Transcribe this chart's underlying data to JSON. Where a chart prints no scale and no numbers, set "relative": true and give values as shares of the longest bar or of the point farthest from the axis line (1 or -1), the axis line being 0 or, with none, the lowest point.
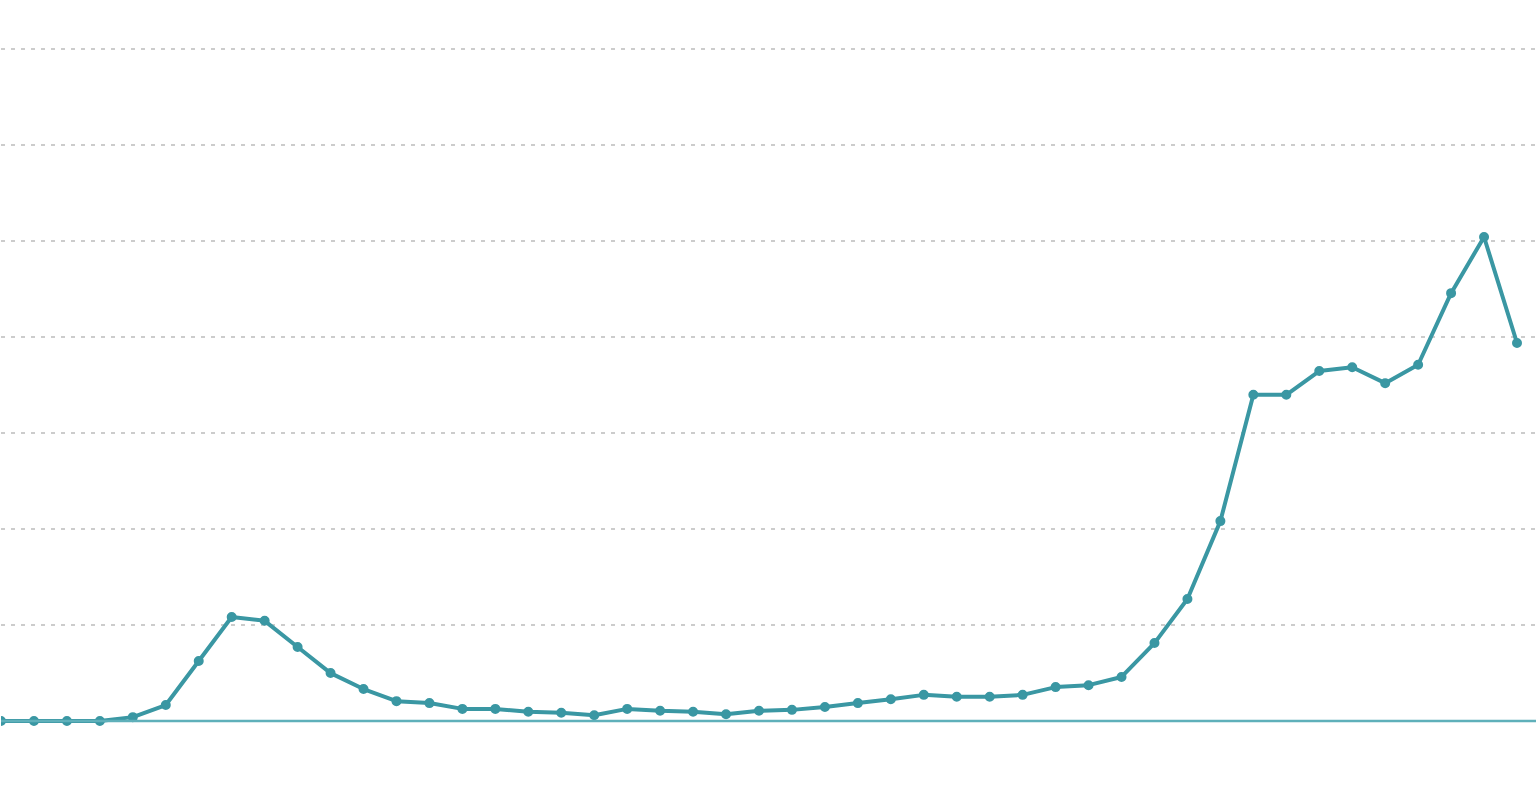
{
  "chart_data": {
    "type": "line",
    "relative": true,
    "grid": "y",
    "marker": "circle",
    "line_style": "solid",
    "categories": [
      null,
      null,
      null,
      null,
      null,
      null,
      null,
      null,
      null,
      null,
      null,
      null,
      null,
      null,
      null,
      null,
      null,
      null,
      null,
      null,
      null,
      null,
      null,
      null,
      null,
      null,
      null,
      null,
      null,
      null,
      null,
      null,
      null,
      null,
      null,
      null,
      null,
      null,
      null,
      null,
      null,
      null,
      null,
      null,
      null,
      null,
      null
    ],
    "series": [
      {
        "color": "#3a97a3",
        "values": [
          0,
          0,
          0,
          0,
          0.008,
          0.033,
          0.124,
          0.215,
          0.207,
          0.153,
          0.099,
          0.066,
          0.041,
          0.037,
          0.025,
          0.025,
          0.019,
          0.017,
          0.012,
          0.025,
          0.021,
          0.019,
          0.014,
          0.021,
          0.023,
          0.029,
          0.037,
          0.045,
          0.054,
          0.05,
          0.05,
          0.054,
          0.07,
          0.074,
          0.091,
          0.161,
          0.252,
          0.413,
          0.674,
          0.674,
          0.723,
          0.731,
          0.698,
          0.736,
          0.884,
          1,
          0.781
        ]
      }
    ]
  }
}
